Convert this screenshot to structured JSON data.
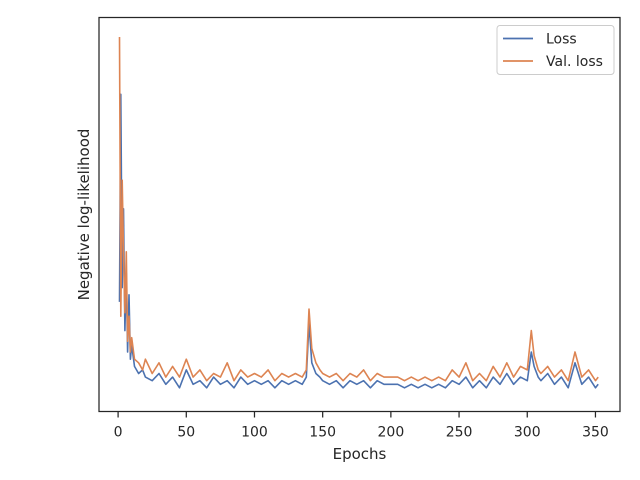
{
  "chart_data": {
    "type": "line",
    "title": "",
    "xlabel": "Epochs",
    "ylabel": "Negative log-likelihood",
    "xlim": [
      -14,
      368
    ],
    "ylim": [
      0,
      1
    ],
    "xticks": [
      0,
      50,
      100,
      150,
      200,
      250,
      300,
      350
    ],
    "yticks_labeled": false,
    "grid": false,
    "legend_position": "top-right",
    "series": [
      {
        "name": "Loss",
        "color": "#4c72b0",
        "points": [
          [
            1,
            0.26
          ],
          [
            2,
            0.84
          ],
          [
            3,
            0.3
          ],
          [
            4,
            0.52
          ],
          [
            5,
            0.18
          ],
          [
            6,
            0.34
          ],
          [
            7,
            0.12
          ],
          [
            8,
            0.28
          ],
          [
            9,
            0.1
          ],
          [
            10,
            0.14
          ],
          [
            12,
            0.08
          ],
          [
            15,
            0.06
          ],
          [
            18,
            0.07
          ],
          [
            20,
            0.05
          ],
          [
            25,
            0.04
          ],
          [
            30,
            0.06
          ],
          [
            35,
            0.03
          ],
          [
            40,
            0.05
          ],
          [
            45,
            0.02
          ],
          [
            50,
            0.07
          ],
          [
            55,
            0.03
          ],
          [
            60,
            0.04
          ],
          [
            65,
            0.02
          ],
          [
            70,
            0.05
          ],
          [
            75,
            0.03
          ],
          [
            80,
            0.04
          ],
          [
            85,
            0.02
          ],
          [
            90,
            0.05
          ],
          [
            95,
            0.03
          ],
          [
            100,
            0.04
          ],
          [
            105,
            0.03
          ],
          [
            110,
            0.04
          ],
          [
            115,
            0.02
          ],
          [
            120,
            0.04
          ],
          [
            125,
            0.03
          ],
          [
            130,
            0.04
          ],
          [
            135,
            0.03
          ],
          [
            138,
            0.05
          ],
          [
            140,
            0.2
          ],
          [
            142,
            0.09
          ],
          [
            145,
            0.06
          ],
          [
            148,
            0.05
          ],
          [
            150,
            0.04
          ],
          [
            155,
            0.03
          ],
          [
            160,
            0.04
          ],
          [
            165,
            0.02
          ],
          [
            170,
            0.04
          ],
          [
            175,
            0.03
          ],
          [
            180,
            0.04
          ],
          [
            185,
            0.02
          ],
          [
            190,
            0.04
          ],
          [
            195,
            0.03
          ],
          [
            200,
            0.03
          ],
          [
            205,
            0.03
          ],
          [
            210,
            0.02
          ],
          [
            215,
            0.03
          ],
          [
            220,
            0.02
          ],
          [
            225,
            0.03
          ],
          [
            230,
            0.02
          ],
          [
            235,
            0.03
          ],
          [
            240,
            0.02
          ],
          [
            245,
            0.04
          ],
          [
            250,
            0.03
          ],
          [
            255,
            0.05
          ],
          [
            260,
            0.02
          ],
          [
            265,
            0.04
          ],
          [
            270,
            0.02
          ],
          [
            275,
            0.05
          ],
          [
            280,
            0.03
          ],
          [
            285,
            0.06
          ],
          [
            290,
            0.03
          ],
          [
            295,
            0.05
          ],
          [
            300,
            0.04
          ],
          [
            303,
            0.12
          ],
          [
            305,
            0.08
          ],
          [
            308,
            0.05
          ],
          [
            310,
            0.04
          ],
          [
            315,
            0.06
          ],
          [
            320,
            0.03
          ],
          [
            325,
            0.05
          ],
          [
            330,
            0.02
          ],
          [
            335,
            0.09
          ],
          [
            340,
            0.03
          ],
          [
            345,
            0.05
          ],
          [
            350,
            0.02
          ],
          [
            352,
            0.03
          ]
        ]
      },
      {
        "name": "Val. loss",
        "color": "#dd8452",
        "points": [
          [
            1,
            1.0
          ],
          [
            2,
            0.22
          ],
          [
            3,
            0.6
          ],
          [
            4,
            0.4
          ],
          [
            5,
            0.23
          ],
          [
            6,
            0.4
          ],
          [
            7,
            0.15
          ],
          [
            8,
            0.22
          ],
          [
            9,
            0.12
          ],
          [
            10,
            0.16
          ],
          [
            12,
            0.1
          ],
          [
            15,
            0.09
          ],
          [
            18,
            0.07
          ],
          [
            20,
            0.1
          ],
          [
            25,
            0.06
          ],
          [
            30,
            0.09
          ],
          [
            35,
            0.05
          ],
          [
            40,
            0.08
          ],
          [
            45,
            0.05
          ],
          [
            50,
            0.1
          ],
          [
            55,
            0.05
          ],
          [
            60,
            0.07
          ],
          [
            65,
            0.04
          ],
          [
            70,
            0.06
          ],
          [
            75,
            0.05
          ],
          [
            80,
            0.09
          ],
          [
            85,
            0.04
          ],
          [
            90,
            0.07
          ],
          [
            95,
            0.05
          ],
          [
            100,
            0.06
          ],
          [
            105,
            0.05
          ],
          [
            110,
            0.07
          ],
          [
            115,
            0.04
          ],
          [
            120,
            0.06
          ],
          [
            125,
            0.05
          ],
          [
            130,
            0.06
          ],
          [
            135,
            0.05
          ],
          [
            138,
            0.07
          ],
          [
            140,
            0.24
          ],
          [
            142,
            0.13
          ],
          [
            145,
            0.09
          ],
          [
            148,
            0.07
          ],
          [
            150,
            0.06
          ],
          [
            155,
            0.05
          ],
          [
            160,
            0.06
          ],
          [
            165,
            0.04
          ],
          [
            170,
            0.06
          ],
          [
            175,
            0.05
          ],
          [
            180,
            0.07
          ],
          [
            185,
            0.04
          ],
          [
            190,
            0.06
          ],
          [
            195,
            0.05
          ],
          [
            200,
            0.05
          ],
          [
            205,
            0.05
          ],
          [
            210,
            0.04
          ],
          [
            215,
            0.05
          ],
          [
            220,
            0.04
          ],
          [
            225,
            0.05
          ],
          [
            230,
            0.04
          ],
          [
            235,
            0.05
          ],
          [
            240,
            0.04
          ],
          [
            245,
            0.07
          ],
          [
            250,
            0.05
          ],
          [
            255,
            0.09
          ],
          [
            260,
            0.04
          ],
          [
            265,
            0.06
          ],
          [
            270,
            0.04
          ],
          [
            275,
            0.08
          ],
          [
            280,
            0.05
          ],
          [
            285,
            0.09
          ],
          [
            290,
            0.05
          ],
          [
            295,
            0.08
          ],
          [
            300,
            0.07
          ],
          [
            303,
            0.18
          ],
          [
            305,
            0.11
          ],
          [
            308,
            0.07
          ],
          [
            310,
            0.06
          ],
          [
            315,
            0.08
          ],
          [
            320,
            0.05
          ],
          [
            325,
            0.07
          ],
          [
            330,
            0.04
          ],
          [
            335,
            0.12
          ],
          [
            340,
            0.05
          ],
          [
            345,
            0.07
          ],
          [
            350,
            0.04
          ],
          [
            352,
            0.05
          ]
        ]
      }
    ]
  }
}
